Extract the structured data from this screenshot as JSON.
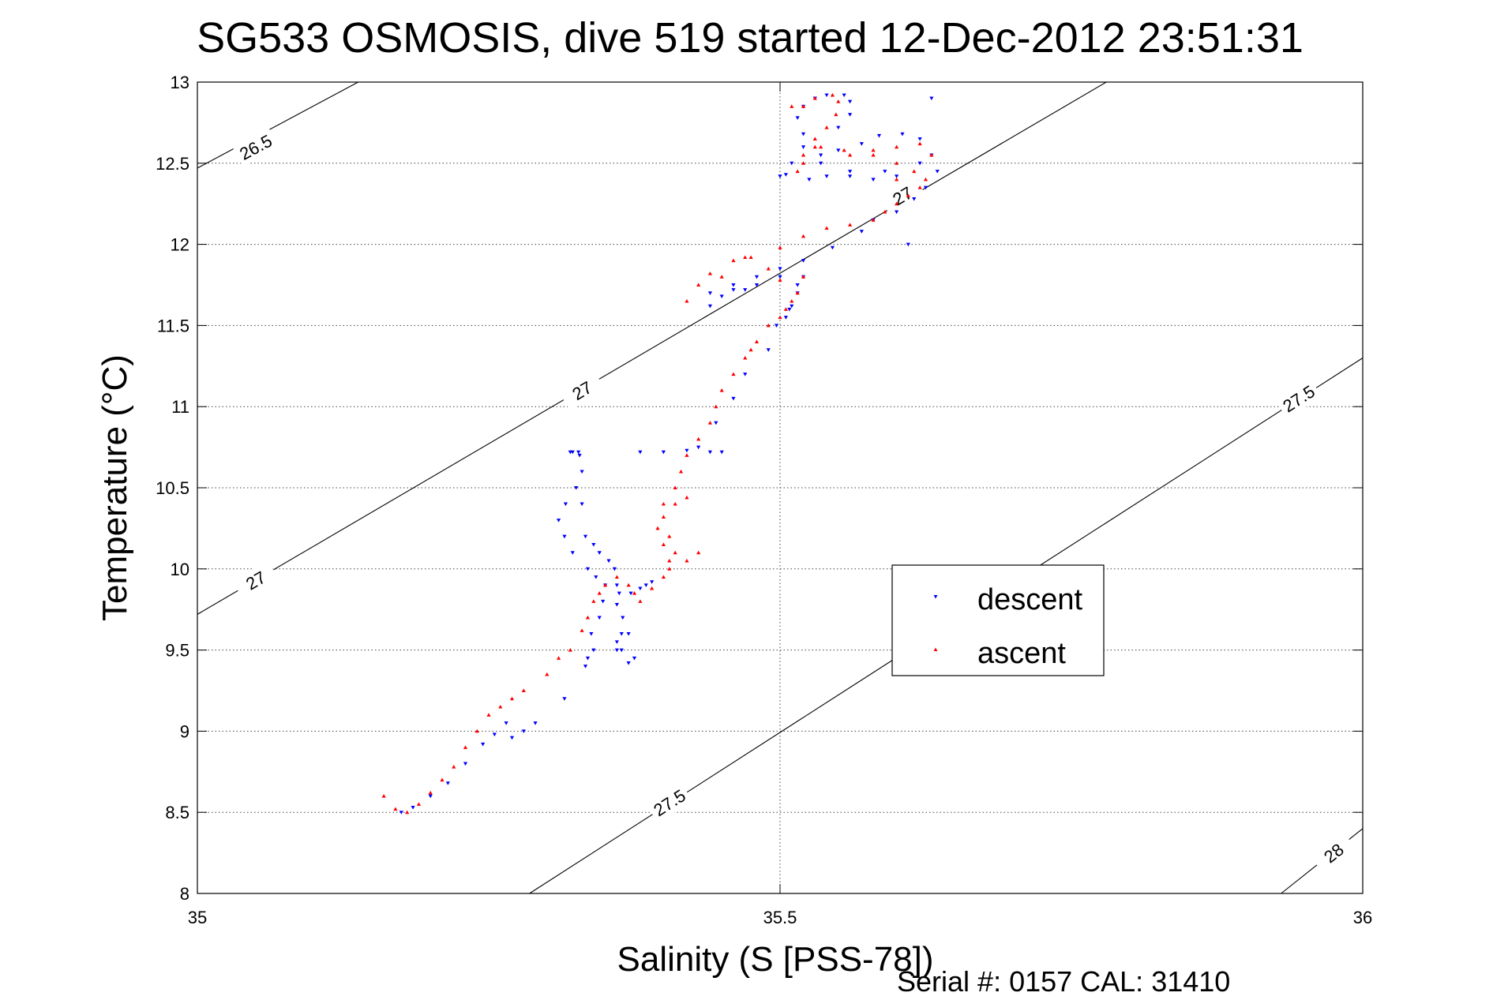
{
  "chart_data": {
    "type": "scatter",
    "title": "SG533 OSMOSIS, dive 519 started 12-Dec-2012 23:51:31",
    "xlabel": "Salinity (S [PSS-78])",
    "ylabel": "Temperature (°C)",
    "xlim": [
      35,
      36
    ],
    "ylim": [
      8,
      13
    ],
    "x_ticks": [
      "35",
      "35.5",
      "36"
    ],
    "y_ticks": [
      "8",
      "8.5",
      "9",
      "9.5",
      "10",
      "10.5",
      "11",
      "11.5",
      "12",
      "12.5",
      "13"
    ],
    "grid": true,
    "legend": "center-right",
    "footer": "Serial #: 0157  CAL: 31410",
    "contours": [
      {
        "label": "26.5",
        "points": [
          [
            35.0,
            12.47
          ],
          [
            35.138,
            13.0
          ]
        ],
        "label_at": [
          35.05,
          12.6
        ]
      },
      {
        "label": "27",
        "points": [
          [
            35.0,
            9.72
          ],
          [
            35.78,
            13.0
          ]
        ],
        "label_at": [
          [
            35.05,
            9.93
          ],
          [
            35.33,
            11.1
          ],
          [
            35.605,
            12.3
          ]
        ]
      },
      {
        "label": "27.5",
        "points": [
          [
            35.285,
            8.0
          ],
          [
            36.0,
            11.3
          ]
        ],
        "label_at": [
          [
            35.405,
            8.56
          ],
          [
            35.945,
            11.05
          ]
        ]
      },
      {
        "label": "28",
        "points": [
          [
            35.93,
            8.0
          ],
          [
            36.0,
            8.4
          ]
        ],
        "label_at": [
          [
            35.975,
            8.25
          ]
        ]
      }
    ],
    "series": [
      {
        "name": "descent",
        "color": "#0000ff",
        "marker": "triangle-down",
        "x": [
          35.175,
          35.185,
          35.2,
          35.215,
          35.23,
          35.245,
          35.255,
          35.265,
          35.27,
          35.28,
          35.29,
          35.315,
          35.333,
          35.335,
          35.34,
          35.338,
          35.345,
          35.348,
          35.35,
          35.342,
          35.335,
          35.322,
          35.315,
          35.31,
          35.316,
          35.325,
          35.33,
          35.328,
          35.32,
          35.322,
          35.327,
          35.33,
          35.333,
          35.34,
          35.345,
          35.353,
          35.358,
          35.36,
          35.362,
          35.36,
          35.365,
          35.37,
          35.36,
          35.36,
          35.375,
          35.385,
          35.39,
          35.38,
          35.372,
          35.364,
          35.364,
          35.37,
          35.38,
          35.4,
          35.42,
          35.44,
          35.45,
          35.43,
          35.445,
          35.46,
          35.47,
          35.49,
          35.497,
          35.505,
          35.51,
          35.515,
          35.508,
          35.515,
          35.52,
          35.5,
          35.48,
          35.46,
          35.44,
          35.47,
          35.44,
          35.45,
          35.46,
          35.48,
          35.5,
          35.52,
          35.545,
          35.57,
          35.58,
          35.6,
          35.615,
          35.625,
          35.635,
          35.62,
          35.59,
          35.56,
          35.54,
          35.535,
          35.55,
          35.57,
          35.585,
          35.605,
          35.62,
          35.63,
          35.6,
          35.58,
          35.56,
          35.535,
          35.52,
          35.515,
          35.52,
          35.53,
          35.54,
          35.555,
          35.56,
          35.56,
          35.55,
          35.52,
          35.51,
          35.505,
          35.525,
          35.5,
          35.63,
          35.61
        ],
        "y": [
          8.5,
          8.53,
          8.6,
          8.68,
          8.8,
          8.92,
          8.98,
          9.05,
          8.96,
          9.0,
          9.05,
          9.2,
          9.4,
          9.45,
          9.5,
          9.6,
          9.7,
          9.8,
          9.9,
          9.95,
          10.0,
          10.1,
          10.2,
          10.3,
          10.4,
          10.5,
          10.6,
          10.7,
          10.72,
          10.72,
          10.72,
          10.4,
          10.2,
          10.15,
          10.1,
          10.05,
          10.0,
          9.9,
          9.85,
          9.78,
          9.7,
          9.6,
          9.55,
          9.5,
          9.45,
          9.9,
          9.92,
          9.88,
          9.85,
          9.6,
          9.5,
          9.42,
          10.72,
          10.72,
          10.73,
          10.72,
          10.72,
          10.75,
          10.9,
          11.05,
          11.2,
          11.35,
          11.5,
          11.55,
          11.62,
          11.7,
          11.6,
          11.75,
          11.8,
          11.85,
          11.8,
          11.75,
          11.7,
          11.72,
          11.62,
          11.68,
          11.72,
          11.75,
          11.8,
          11.9,
          11.98,
          12.08,
          12.15,
          12.2,
          12.28,
          12.35,
          12.45,
          12.5,
          12.45,
          12.42,
          12.42,
          12.5,
          12.58,
          12.62,
          12.67,
          12.68,
          12.65,
          12.55,
          12.42,
          12.4,
          12.45,
          12.55,
          12.68,
          12.78,
          12.85,
          12.9,
          12.92,
          12.92,
          12.88,
          12.8,
          12.72,
          12.6,
          12.5,
          12.43,
          12.4,
          12.42,
          12.9,
          12.0
        ]
      },
      {
        "name": "ascent",
        "color": "#ff0000",
        "marker": "triangle-up",
        "x": [
          35.16,
          35.17,
          35.18,
          35.19,
          35.2,
          35.21,
          35.22,
          35.23,
          35.24,
          35.25,
          35.26,
          35.27,
          35.28,
          35.3,
          35.31,
          35.32,
          35.33,
          35.335,
          35.34,
          35.345,
          35.35,
          35.36,
          35.37,
          35.375,
          35.38,
          35.39,
          35.4,
          35.405,
          35.41,
          35.405,
          35.4,
          35.41,
          35.42,
          35.43,
          35.42,
          35.405,
          35.4,
          35.395,
          35.4,
          35.41,
          35.415,
          35.42,
          35.43,
          35.44,
          35.445,
          35.45,
          35.46,
          35.47,
          35.475,
          35.48,
          35.49,
          35.5,
          35.505,
          35.51,
          35.515,
          35.52,
          35.5,
          35.49,
          35.47,
          35.46,
          35.44,
          35.43,
          35.42,
          35.45,
          35.475,
          35.5,
          35.52,
          35.54,
          35.56,
          35.58,
          35.59,
          35.6,
          35.61,
          35.62,
          35.625,
          35.615,
          35.6,
          35.58,
          35.555,
          35.535,
          35.52,
          35.515,
          35.52,
          35.53,
          35.54,
          35.548,
          35.55,
          35.545,
          35.53,
          35.52,
          35.51,
          35.53,
          35.56,
          35.58,
          35.6,
          35.62,
          35.63,
          35.6
        ],
        "y": [
          8.6,
          8.52,
          8.5,
          8.55,
          8.62,
          8.7,
          8.78,
          8.9,
          9.0,
          9.1,
          9.15,
          9.2,
          9.25,
          9.35,
          9.45,
          9.5,
          9.62,
          9.7,
          9.8,
          9.85,
          9.9,
          9.95,
          9.9,
          9.85,
          9.8,
          9.88,
          9.95,
          10.05,
          10.1,
          10.2,
          10.32,
          10.4,
          10.44,
          10.1,
          10.05,
          10.0,
          10.15,
          10.25,
          10.4,
          10.5,
          10.6,
          10.7,
          10.8,
          10.9,
          11.0,
          11.1,
          11.2,
          11.3,
          11.35,
          11.4,
          11.5,
          11.55,
          11.6,
          11.65,
          11.7,
          11.8,
          11.78,
          11.85,
          11.92,
          11.9,
          11.82,
          11.75,
          11.65,
          11.8,
          11.92,
          11.98,
          12.05,
          12.1,
          12.12,
          12.15,
          12.2,
          12.25,
          12.3,
          12.35,
          12.4,
          12.45,
          12.5,
          12.55,
          12.58,
          12.6,
          12.5,
          12.45,
          12.55,
          12.65,
          12.72,
          12.8,
          12.88,
          12.92,
          12.9,
          12.85,
          12.85,
          12.6,
          12.55,
          12.58,
          12.6,
          12.62,
          12.55,
          12.4
        ]
      }
    ]
  }
}
